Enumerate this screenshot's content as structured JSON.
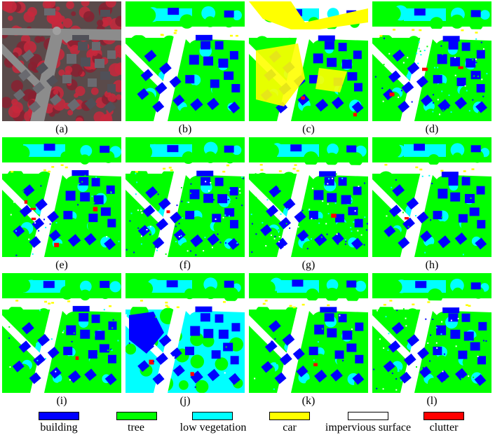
{
  "panels": [
    {
      "label": "(a)",
      "kind": "photo"
    },
    {
      "label": "(b)",
      "kind": "seg"
    },
    {
      "label": "(c)",
      "kind": "seg"
    },
    {
      "label": "(d)",
      "kind": "seg"
    },
    {
      "label": "(e)",
      "kind": "seg"
    },
    {
      "label": "(f)",
      "kind": "seg"
    },
    {
      "label": "(g)",
      "kind": "seg"
    },
    {
      "label": "(h)",
      "kind": "seg"
    },
    {
      "label": "(i)",
      "kind": "seg"
    },
    {
      "label": "(j)",
      "kind": "seg"
    },
    {
      "label": "(k)",
      "kind": "seg"
    },
    {
      "label": "(l)",
      "kind": "seg"
    }
  ],
  "legend": [
    {
      "label": "building",
      "color": "#0000ff"
    },
    {
      "label": "tree",
      "color": "#00ff00"
    },
    {
      "label": "low vegetation",
      "color": "#00ffff"
    },
    {
      "label": "car",
      "color": "#ffff00"
    },
    {
      "label": "impervious surface",
      "color": "#ffffff"
    },
    {
      "label": "clutter",
      "color": "#ff0000"
    }
  ]
}
